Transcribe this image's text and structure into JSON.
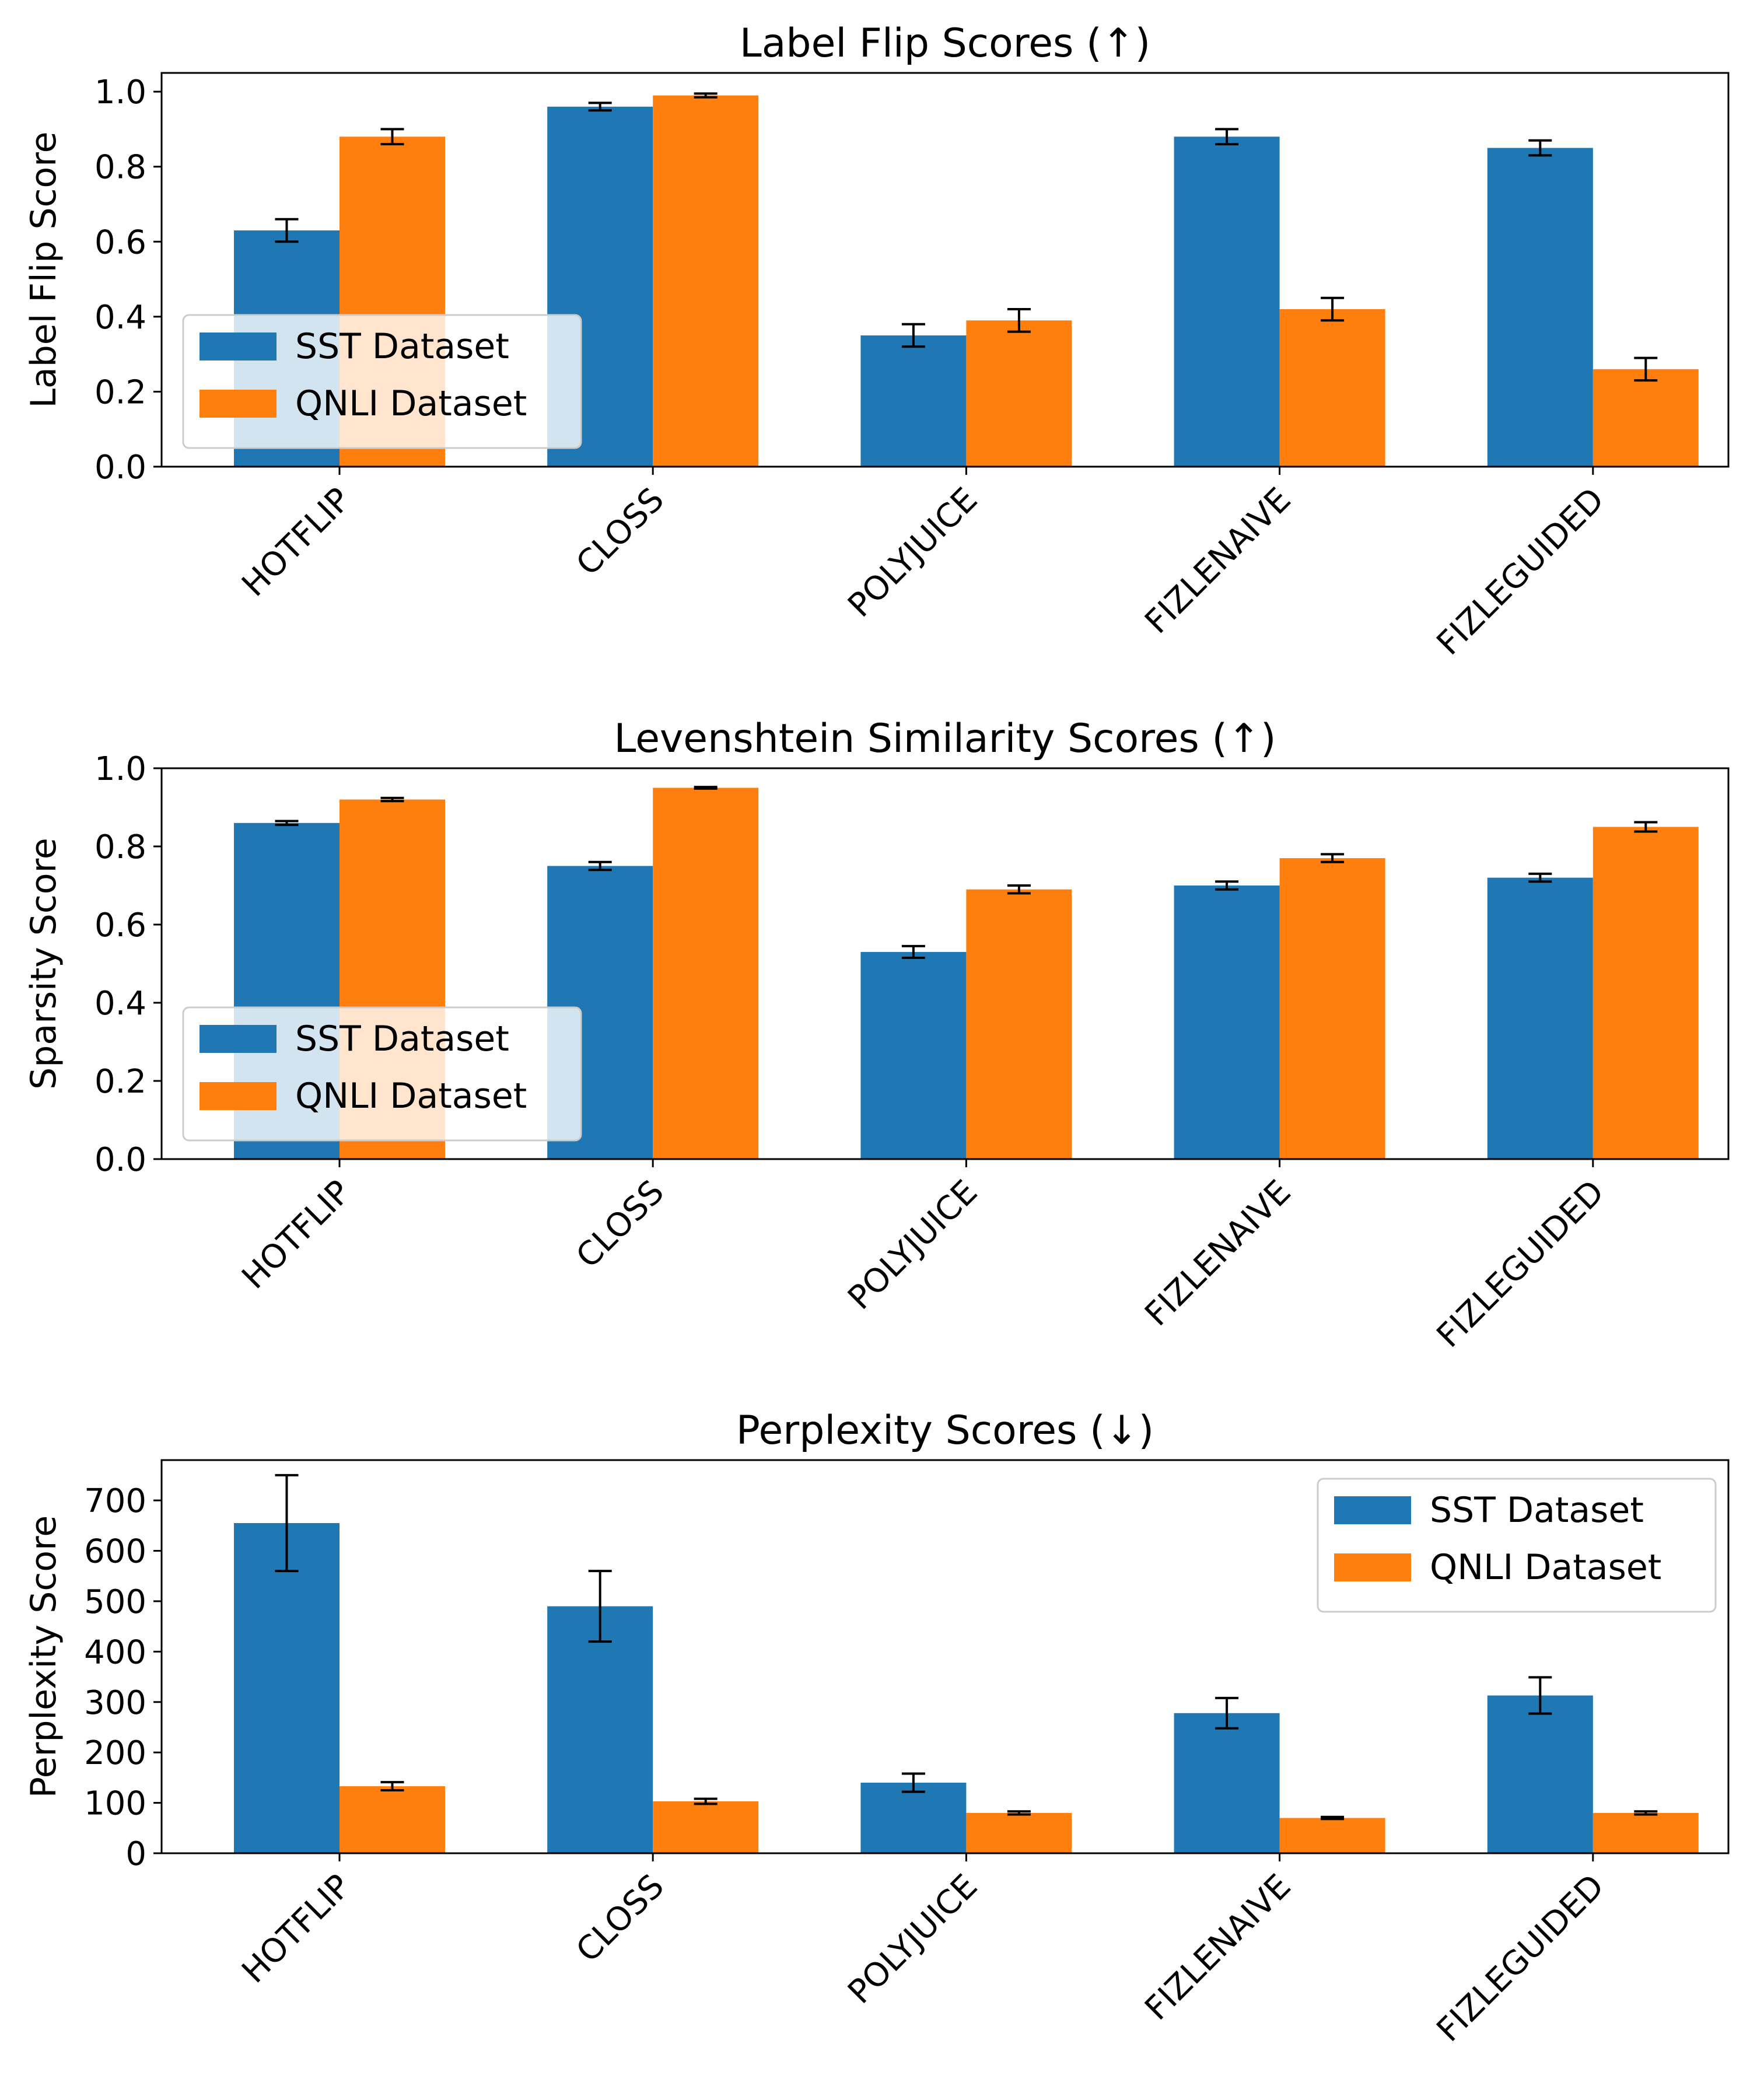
{
  "chart_data": [
    {
      "type": "bar",
      "title": "Label Flip Scores (↑)",
      "ylabel": "Label Flip Score",
      "xlabel": "",
      "categories": [
        "HOTFLIP",
        "CLOSS",
        "POLYJUICE",
        "FIZLENAIVE",
        "FIZLEGUIDED"
      ],
      "ylim": [
        0,
        1.05
      ],
      "yticks": [
        0.0,
        0.2,
        0.4,
        0.6,
        0.8,
        1.0
      ],
      "ytick_labels": [
        "0.0",
        "0.2",
        "0.4",
        "0.6",
        "0.8",
        "1.0"
      ],
      "legend_position": "lower-left",
      "series": [
        {
          "name": "SST Dataset",
          "color": "#1f77b4",
          "values": [
            0.63,
            0.96,
            0.35,
            0.88,
            0.85
          ],
          "errors": [
            0.03,
            0.01,
            0.03,
            0.02,
            0.02
          ]
        },
        {
          "name": "QNLI Dataset",
          "color": "#ff7f0e",
          "values": [
            0.88,
            0.99,
            0.39,
            0.42,
            0.26
          ],
          "errors": [
            0.02,
            0.005,
            0.03,
            0.03,
            0.03
          ]
        }
      ]
    },
    {
      "type": "bar",
      "title": "Levenshtein Similarity Scores (↑)",
      "ylabel": "Sparsity Score",
      "xlabel": "",
      "categories": [
        "HOTFLIP",
        "CLOSS",
        "POLYJUICE",
        "FIZLENAIVE",
        "FIZLEGUIDED"
      ],
      "ylim": [
        0,
        1.0
      ],
      "yticks": [
        0.0,
        0.2,
        0.4,
        0.6,
        0.8,
        1.0
      ],
      "ytick_labels": [
        "0.0",
        "0.2",
        "0.4",
        "0.6",
        "0.8",
        "1.0"
      ],
      "legend_position": "lower-left",
      "series": [
        {
          "name": "SST Dataset",
          "color": "#1f77b4",
          "values": [
            0.86,
            0.75,
            0.53,
            0.7,
            0.72
          ],
          "errors": [
            0.005,
            0.01,
            0.015,
            0.01,
            0.01
          ]
        },
        {
          "name": "QNLI Dataset",
          "color": "#ff7f0e",
          "values": [
            0.92,
            0.95,
            0.69,
            0.77,
            0.85
          ],
          "errors": [
            0.004,
            0.002,
            0.01,
            0.01,
            0.012
          ]
        }
      ]
    },
    {
      "type": "bar",
      "title": "Perplexity Scores (↓)",
      "ylabel": "Perplexity Score",
      "xlabel": "",
      "categories": [
        "HOTFLIP",
        "CLOSS",
        "POLYJUICE",
        "FIZLENAIVE",
        "FIZLEGUIDED"
      ],
      "ylim": [
        0,
        780
      ],
      "yticks": [
        0,
        100,
        200,
        300,
        400,
        500,
        600,
        700
      ],
      "ytick_labels": [
        "0",
        "100",
        "200",
        "300",
        "400",
        "500",
        "600",
        "700"
      ],
      "legend_position": "upper-right",
      "series": [
        {
          "name": "SST Dataset",
          "color": "#1f77b4",
          "values": [
            655,
            490,
            140,
            278,
            313
          ],
          "errors": [
            95,
            70,
            18,
            30,
            36
          ]
        },
        {
          "name": "QNLI Dataset",
          "color": "#ff7f0e",
          "values": [
            133,
            103,
            80,
            70,
            80
          ],
          "errors": [
            8,
            5,
            3,
            2,
            3
          ]
        }
      ]
    }
  ]
}
